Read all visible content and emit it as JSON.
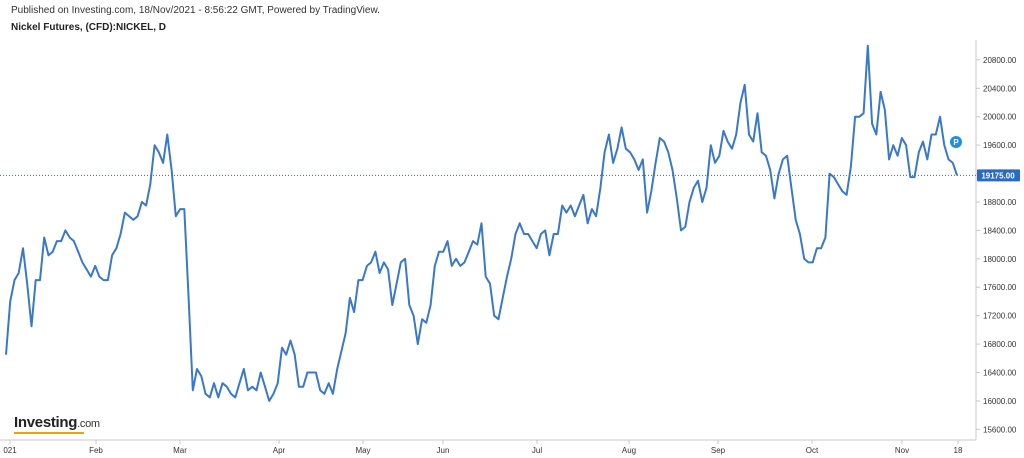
{
  "header": {
    "published": "Published on Investing.com, 18/Nov/2021 - 8:56:22 GMT, Powered by TradingView.",
    "instrument": "Nickel Futures, (CFD):NICKEL, D"
  },
  "logo": {
    "main": "Investing",
    "suffix": ".com"
  },
  "colors": {
    "line": "#3a78c9",
    "price_tag": "#2a6ac4",
    "marker": "#1e8fe0",
    "axis": "#c8c8c8",
    "text": "#333333"
  },
  "current_price_label": "19175.00",
  "marker_label": "P",
  "chart_data": {
    "type": "line",
    "title": "Nickel Futures, (CFD):NICKEL, D",
    "ylim": [
      15450,
      21080
    ],
    "y_ticks": [
      "15600.00",
      "16000.00",
      "16400.00",
      "16800.00",
      "17200.00",
      "17600.00",
      "18000.00",
      "18400.00",
      "18800.00",
      "19200.00",
      "19600.00",
      "20000.00",
      "20400.00",
      "20800.00"
    ],
    "x_tick_labels": [
      "021",
      "Feb",
      "Mar",
      "Apr",
      "May",
      "Jun",
      "Jul",
      "Aug",
      "Sep",
      "Oct",
      "Nov",
      "18"
    ],
    "last_value": 19175,
    "values": [
      16650,
      17400,
      17700,
      17800,
      18150,
      17650,
      17050,
      17700,
      17700,
      18300,
      18050,
      18100,
      18250,
      18250,
      18400,
      18300,
      18250,
      18100,
      17950,
      17850,
      17750,
      17900,
      17750,
      17700,
      17700,
      18050,
      18150,
      18350,
      18650,
      18600,
      18550,
      18600,
      18800,
      18750,
      19050,
      19600,
      19500,
      19350,
      19750,
      19250,
      18600,
      18700,
      18700,
      17450,
      16150,
      16450,
      16350,
      16100,
      16050,
      16250,
      16050,
      16250,
      16200,
      16100,
      16050,
      16250,
      16450,
      16150,
      16200,
      16150,
      16400,
      16200,
      16000,
      16100,
      16250,
      16750,
      16650,
      16850,
      16650,
      16200,
      16200,
      16400,
      16400,
      16400,
      16150,
      16100,
      16250,
      16100,
      16450,
      16700,
      16950,
      17450,
      17250,
      17700,
      17700,
      17900,
      17950,
      18100,
      17800,
      17950,
      17850,
      17350,
      17650,
      17950,
      18000,
      17350,
      17200,
      16800,
      17150,
      17100,
      17350,
      17900,
      18100,
      18100,
      18250,
      17900,
      18000,
      17900,
      17950,
      18100,
      18250,
      18200,
      18500,
      17750,
      17650,
      17200,
      17150,
      17450,
      17750,
      18000,
      18350,
      18500,
      18350,
      18350,
      18250,
      18150,
      18350,
      18400,
      18050,
      18350,
      18350,
      18750,
      18650,
      18750,
      18600,
      18750,
      18900,
      18500,
      18700,
      18600,
      19000,
      19500,
      19750,
      19350,
      19550,
      19850,
      19550,
      19500,
      19400,
      19250,
      19400,
      18650,
      18950,
      19350,
      19700,
      19650,
      19500,
      19250,
      18850,
      18400,
      18450,
      18800,
      19000,
      19100,
      18800,
      19000,
      19600,
      19350,
      19450,
      19800,
      19650,
      19550,
      19750,
      20200,
      20450,
      19750,
      19650,
      20050,
      19500,
      19450,
      19250,
      18850,
      19200,
      19400,
      19450,
      19000,
      18550,
      18350,
      18000,
      17950,
      17950,
      18150,
      18150,
      18300,
      19200,
      19150,
      19050,
      18950,
      18900,
      19300,
      20000,
      20000,
      20050,
      21000,
      19900,
      19750,
      20350,
      20100,
      19400,
      19600,
      19450,
      19700,
      19600,
      19150,
      19150,
      19500,
      19650,
      19400,
      19750,
      19750,
      20000,
      19600,
      19400,
      19350,
      19175
    ]
  }
}
